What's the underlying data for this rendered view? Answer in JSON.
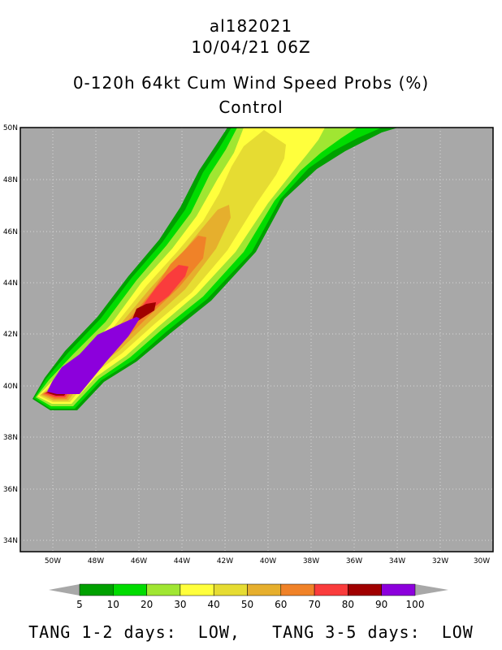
{
  "header": {
    "storm_id": "al182021",
    "datetime": "10/04/21 06Z",
    "product": "0-120h 64kt Cum Wind Speed Probs (%)",
    "run": "Control"
  },
  "map": {
    "lat_labels": [
      "50N",
      "48N",
      "46N",
      "44N",
      "42N",
      "40N",
      "38N",
      "36N",
      "34N"
    ],
    "lon_labels": [
      "50W",
      "48W",
      "46W",
      "44W",
      "42W",
      "40W",
      "38W",
      "36W",
      "34W",
      "32W",
      "30W"
    ],
    "land_color": "#a8a8a8"
  },
  "legend": {
    "levels": [
      "5",
      "10",
      "20",
      "30",
      "40",
      "50",
      "60",
      "70",
      "80",
      "90",
      "100"
    ],
    "colors": [
      "#00a000",
      "#00dc00",
      "#a0e632",
      "#ffff3c",
      "#e6dc32",
      "#e6af2d",
      "#f08228",
      "#fa3c3c",
      "#a00000",
      "#8c00dc"
    ]
  },
  "footer": {
    "text": "TANG 1-2 days:  LOW,   TANG 3-5 days:  LOW"
  }
}
